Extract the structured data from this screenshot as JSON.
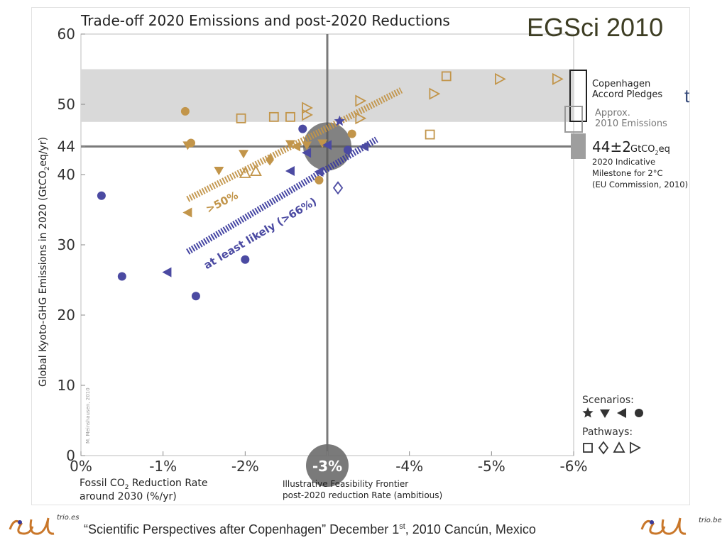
{
  "slide": {
    "title": "EGSci 2010",
    "title_tail": "t",
    "footer_text": "“Scientific Perspectives after Copenhagen”  December 1",
    "footer_sup": "st",
    "footer_tail": ", 2010 Cancún, Mexico",
    "logo_left_word": "trio.es",
    "logo_right_word": "trio.be"
  },
  "chart_data": {
    "type": "scatter",
    "title": "Trade-off 2020 Emissions and post-2020 Reductions",
    "ylabel": "Global Kyoto-GHG Emissions in 2020 (GtCO2eq/yr)",
    "ylabel_parts": [
      "Global Kyoto-GHG Emissions in 2020 (GtCO",
      "2",
      "eq/yr)"
    ],
    "xlabel_lines": [
      "Fossil CO",
      "2",
      " Reduction Rate",
      "around 2030 (%/yr)"
    ],
    "credit": "M. Meinshausen, 2010",
    "xlim": [
      0,
      -6
    ],
    "ylim": [
      0,
      60
    ],
    "x_ticks": [
      {
        "v": 0,
        "label": "0%"
      },
      {
        "v": -1,
        "label": "-1%"
      },
      {
        "v": -2,
        "label": "-2%"
      },
      {
        "v": -3,
        "label": "-3%"
      },
      {
        "v": -4,
        "label": "-4%"
      },
      {
        "v": -5,
        "label": "-5%"
      },
      {
        "v": -6,
        "label": "-6%"
      }
    ],
    "y_ticks": [
      {
        "v": 0,
        "label": "0"
      },
      {
        "v": 10,
        "label": "10"
      },
      {
        "v": 20,
        "label": "20"
      },
      {
        "v": 30,
        "label": "30"
      },
      {
        "v": 40,
        "label": "40"
      },
      {
        "v": 44,
        "label": "44"
      },
      {
        "v": 50,
        "label": "50"
      },
      {
        "v": 60,
        "label": "60"
      }
    ],
    "copenhagen_band": [
      47.5,
      55
    ],
    "reference_lines": {
      "x": -3,
      "y": 44
    },
    "circle_labels": {
      "feasibility_value": "-3%"
    },
    "feasibility_text": [
      "Illustrative Feasibility Frontier",
      "post-2020 reduction Rate (ambitious)"
    ],
    "trade_off_lines": [
      {
        "name": ">50%",
        "color": "#c2954a",
        "from": [
          -1.3,
          36.5
        ],
        "to": [
          -3.9,
          52
        ]
      },
      {
        "name": "at least likely (>66%)",
        "color": "#3b3b9e",
        "from": [
          -1.3,
          29
        ],
        "to": [
          -3.6,
          45
        ]
      }
    ],
    "trade_off_labels": [
      ">50%",
      "at least likely (>66%)"
    ],
    "series": [
      {
        "name": ">50% likely",
        "color": "#c2954a",
        "points": [
          {
            "x": -1.27,
            "y": 49,
            "m": "circle"
          },
          {
            "x": -1.34,
            "y": 44.5,
            "m": "circle"
          },
          {
            "x": -1.3,
            "y": 44.2,
            "m": "tri-down"
          },
          {
            "x": -1.3,
            "y": 34.6,
            "m": "tri-left"
          },
          {
            "x": -1.68,
            "y": 40.6,
            "m": "tri-down"
          },
          {
            "x": -1.98,
            "y": 43,
            "m": "tri-down"
          },
          {
            "x": -2.3,
            "y": 42.1,
            "m": "diamond-filled"
          },
          {
            "x": -2.55,
            "y": 44.4,
            "m": "tri-down"
          },
          {
            "x": -2.62,
            "y": 44,
            "m": "tri-left"
          },
          {
            "x": -2.75,
            "y": 44.2,
            "m": "tri-down"
          },
          {
            "x": -2.94,
            "y": 44.5,
            "m": "tri-down"
          },
          {
            "x": -2.9,
            "y": 39.2,
            "m": "circle"
          },
          {
            "x": -3.3,
            "y": 45.8,
            "m": "circle"
          },
          {
            "x": -1.95,
            "y": 48,
            "m": "square"
          },
          {
            "x": -2.35,
            "y": 48.2,
            "m": "square"
          },
          {
            "x": -2.55,
            "y": 48.2,
            "m": "square"
          },
          {
            "x": -4.25,
            "y": 45.7,
            "m": "square"
          },
          {
            "x": -4.45,
            "y": 54,
            "m": "square"
          },
          {
            "x": -2.0,
            "y": 40.2,
            "m": "tri-up"
          },
          {
            "x": -2.13,
            "y": 40.5,
            "m": "tri-up"
          },
          {
            "x": -2.75,
            "y": 49.5,
            "m": "tri-right"
          },
          {
            "x": -2.75,
            "y": 48.5,
            "m": "tri-right"
          },
          {
            "x": -3.4,
            "y": 50.5,
            "m": "tri-right"
          },
          {
            "x": -3.4,
            "y": 48,
            "m": "tri-right"
          },
          {
            "x": -4.3,
            "y": 51.5,
            "m": "tri-right"
          },
          {
            "x": -5.1,
            "y": 53.6,
            "m": "tri-right"
          },
          {
            "x": -5.8,
            "y": 53.6,
            "m": "tri-right"
          }
        ]
      },
      {
        "name": "at least likely (>66%)",
        "color": "#4b4aa2",
        "points": [
          {
            "x": -0.25,
            "y": 37,
            "m": "circle"
          },
          {
            "x": -0.5,
            "y": 25.5,
            "m": "circle"
          },
          {
            "x": -1.05,
            "y": 26.1,
            "m": "tri-left"
          },
          {
            "x": -1.4,
            "y": 22.7,
            "m": "circle"
          },
          {
            "x": -2.0,
            "y": 27.9,
            "m": "circle"
          },
          {
            "x": -2.55,
            "y": 40.5,
            "m": "tri-left"
          },
          {
            "x": -2.7,
            "y": 46.5,
            "m": "circle"
          },
          {
            "x": -2.75,
            "y": 43.1,
            "m": "tri-left"
          },
          {
            "x": -2.9,
            "y": 40.4,
            "m": "tri-left"
          },
          {
            "x": -3.0,
            "y": 44.2,
            "m": "tri-left"
          },
          {
            "x": -3.15,
            "y": 47.6,
            "m": "star"
          },
          {
            "x": -3.25,
            "y": 43.5,
            "m": "circle"
          },
          {
            "x": -3.45,
            "y": 44,
            "m": "tri-left"
          },
          {
            "x": -3.13,
            "y": 38.1,
            "m": "diamond"
          }
        ]
      }
    ],
    "legend": {
      "copenhagen": [
        "Copenhagen",
        "Accord Pledges"
      ],
      "approx2010": [
        "Approx.",
        "2010 Emissions"
      ],
      "milestone_value": "44±2",
      "milestone_unit": "GtCO",
      "milestone_unit_sub": "2",
      "milestone_unit_tail": "eq",
      "milestone_lines": [
        "2020 Indicative",
        "Milestone for 2°C",
        "(EU Commission, 2010)"
      ],
      "scenarios_label": "Scenarios:",
      "scenario_markers": [
        "star",
        "tri-down",
        "tri-left",
        "circle"
      ],
      "pathways_label": "Pathways:",
      "pathway_markers": [
        "square",
        "diamond",
        "tri-up",
        "tri-right"
      ]
    },
    "colors": {
      "orange": "#c2954a",
      "blue": "#4b4aa2",
      "grid": "#7a7a7a",
      "band": "#d9d9d9"
    }
  }
}
